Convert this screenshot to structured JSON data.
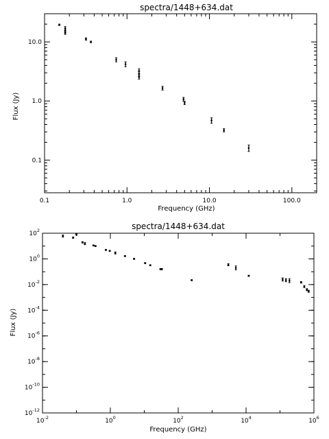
{
  "chart_data": [
    {
      "type": "scatter",
      "title": "spectra/1448+634.dat",
      "xlabel": "Frequency (GHz)",
      "ylabel": "Flux (Jy)",
      "xscale": "log",
      "yscale": "log",
      "xlim": [
        0.1,
        200
      ],
      "ylim": [
        0.028,
        30
      ],
      "x_ticks": [
        {
          "value": 0.1,
          "label": "0.1"
        },
        {
          "value": 1,
          "label": "1.0"
        },
        {
          "value": 10,
          "label": "10.0"
        },
        {
          "value": 100,
          "label": "100.0"
        }
      ],
      "y_ticks": [
        {
          "value": 0.1,
          "label": "0.1"
        },
        {
          "value": 1,
          "label": "1.0"
        },
        {
          "value": 10,
          "label": "10.0"
        }
      ],
      "grid": false,
      "points": [
        {
          "x": 0.151,
          "y": 19.5,
          "err": 0.5
        },
        {
          "x": 0.178,
          "y": 17.0,
          "err": 1.2
        },
        {
          "x": 0.178,
          "y": 15.5,
          "err": 1.2
        },
        {
          "x": 0.178,
          "y": 14.2,
          "err": 0.8
        },
        {
          "x": 0.318,
          "y": 11.2,
          "err": 0.5
        },
        {
          "x": 0.365,
          "y": 10.0,
          "err": 0.3
        },
        {
          "x": 0.74,
          "y": 5.0,
          "err": 0.4
        },
        {
          "x": 0.96,
          "y": 4.2,
          "err": 0.4
        },
        {
          "x": 1.4,
          "y": 3.2,
          "err": 0.3
        },
        {
          "x": 1.4,
          "y": 2.9,
          "err": 0.3
        },
        {
          "x": 1.4,
          "y": 2.55,
          "err": 0.2
        },
        {
          "x": 2.7,
          "y": 1.65,
          "err": 0.12
        },
        {
          "x": 4.85,
          "y": 1.07,
          "err": 0.08
        },
        {
          "x": 5.0,
          "y": 0.93,
          "err": 0.06
        },
        {
          "x": 10.6,
          "y": 0.47,
          "err": 0.05
        },
        {
          "x": 15.0,
          "y": 0.32,
          "err": 0.02
        },
        {
          "x": 30.0,
          "y": 0.16,
          "err": 0.02
        }
      ]
    },
    {
      "type": "scatter",
      "title": "spectra/1448+634.dat",
      "xlabel": "Frequency (GHz)",
      "ylabel": "Flux (Jy)",
      "xscale": "log",
      "yscale": "log",
      "xlim": [
        0.01,
        1000000
      ],
      "ylim": [
        1e-12,
        100
      ],
      "x_ticks": [
        {
          "value": 0.01,
          "base": "10",
          "exp": "-2"
        },
        {
          "value": 1,
          "base": "10",
          "exp": "0"
        },
        {
          "value": 100,
          "base": "10",
          "exp": "2"
        },
        {
          "value": 10000,
          "base": "10",
          "exp": "4"
        },
        {
          "value": 1000000,
          "base": "10",
          "exp": "6"
        }
      ],
      "y_ticks": [
        {
          "value": 100,
          "base": "10",
          "exp": "2"
        },
        {
          "value": 1,
          "base": "10",
          "exp": "0"
        },
        {
          "value": 0.01,
          "base": "10",
          "exp": "-2"
        },
        {
          "value": 0.0001,
          "base": "10",
          "exp": "-4"
        },
        {
          "value": 1e-06,
          "base": "10",
          "exp": "-6"
        },
        {
          "value": 1e-08,
          "base": "10",
          "exp": "-8"
        },
        {
          "value": 1e-10,
          "base": "10",
          "exp": "-10"
        },
        {
          "value": 1e-12,
          "base": "10",
          "exp": "-12"
        }
      ],
      "grid": false,
      "points": [
        {
          "x": 0.04,
          "y": 60,
          "err_dex": 0.08
        },
        {
          "x": 0.08,
          "y": 45,
          "err_dex": 0.05
        },
        {
          "x": 0.1,
          "y": 80,
          "err_dex": 0.05
        },
        {
          "x": 0.151,
          "y": 19.5,
          "err_dex": 0.05
        },
        {
          "x": 0.178,
          "y": 15.5,
          "err_dex": 0.08
        },
        {
          "x": 0.318,
          "y": 11.2,
          "err_dex": 0.04
        },
        {
          "x": 0.365,
          "y": 10.0,
          "err_dex": 0.04
        },
        {
          "x": 0.74,
          "y": 5.0,
          "err_dex": 0.04
        },
        {
          "x": 0.96,
          "y": 4.2,
          "err_dex": 0.04
        },
        {
          "x": 1.4,
          "y": 2.9,
          "err_dex": 0.08
        },
        {
          "x": 2.7,
          "y": 1.65,
          "err_dex": 0.04
        },
        {
          "x": 5.0,
          "y": 1.0,
          "err_dex": 0.04
        },
        {
          "x": 10.6,
          "y": 0.47,
          "err_dex": 0.04
        },
        {
          "x": 15.0,
          "y": 0.32,
          "err_dex": 0.04
        },
        {
          "x": 30.0,
          "y": 0.16,
          "err_dex": 0.04
        },
        {
          "x": 31.0,
          "y": 0.16,
          "err_dex": 0.04
        },
        {
          "x": 32.0,
          "y": 0.16,
          "err_dex": 0.04
        },
        {
          "x": 33.0,
          "y": 0.16,
          "err_dex": 0.04
        },
        {
          "x": 250,
          "y": 0.022,
          "err_dex": 0.04
        },
        {
          "x": 3000,
          "y": 0.35,
          "err_dex": 0.08
        },
        {
          "x": 5000,
          "y": 0.2,
          "err_dex": 0.15
        },
        {
          "x": 12000,
          "y": 0.048,
          "err_dex": 0.04
        },
        {
          "x": 120000,
          "y": 0.025,
          "err_dex": 0.12
        },
        {
          "x": 150000,
          "y": 0.022,
          "err_dex": 0.12
        },
        {
          "x": 190000,
          "y": 0.02,
          "err_dex": 0.15
        },
        {
          "x": 420000,
          "y": 0.015,
          "err_dex": 0.06
        },
        {
          "x": 520000,
          "y": 0.007,
          "err_dex": 0.08
        },
        {
          "x": 620000,
          "y": 0.004,
          "err_dex": 0.08
        },
        {
          "x": 700000,
          "y": 0.003,
          "err_dex": 0.08
        }
      ]
    }
  ]
}
